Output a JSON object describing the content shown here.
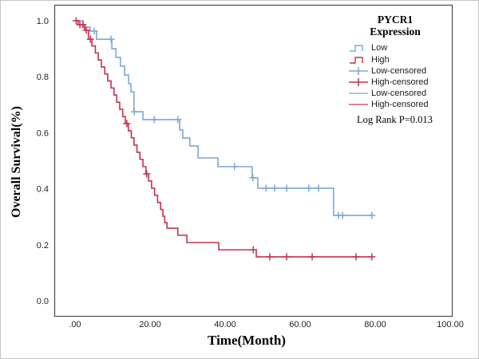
{
  "figure": {
    "background": "#ffffff",
    "plot_border_color": "#4a4a4a"
  },
  "chart_data": {
    "type": "line",
    "subtype": "kaplan-meier-step",
    "title": "",
    "xlabel": "Time(Month)",
    "ylabel": "Overall Survival(%)",
    "grid": false,
    "legend_position": "top-right",
    "xlim": [
      -5.5,
      100.4
    ],
    "ylim": [
      -0.054,
      1.057
    ],
    "xticks": {
      "values": [
        0,
        20,
        40,
        60,
        80,
        100
      ],
      "labels": [
        ".00",
        "20.00",
        "40.00",
        "60.00",
        "80.00",
        "100.00"
      ]
    },
    "yticks": {
      "values": [
        0,
        0.2,
        0.4,
        0.6,
        0.8,
        1.0
      ],
      "labels": [
        "0.0",
        "0.2",
        "0.4",
        "0.6",
        "0.8",
        "1.0"
      ]
    },
    "series": [
      {
        "name": "Low",
        "color": "#7fa6d9",
        "steps": [
          [
            0,
            1.0
          ],
          [
            2.1,
            0.977
          ],
          [
            4.0,
            0.963
          ],
          [
            5.7,
            0.934
          ],
          [
            9.8,
            0.9
          ],
          [
            10.9,
            0.869
          ],
          [
            12.1,
            0.838
          ],
          [
            13.2,
            0.806
          ],
          [
            14.3,
            0.775
          ],
          [
            14.9,
            0.746
          ],
          [
            15.7,
            0.675
          ],
          [
            18.1,
            0.647
          ],
          [
            27.9,
            0.61
          ],
          [
            28.7,
            0.581
          ],
          [
            30.6,
            0.553
          ],
          [
            32.8,
            0.51
          ],
          [
            38.1,
            0.479
          ],
          [
            47.2,
            0.439
          ],
          [
            48.7,
            0.402
          ],
          [
            68.9,
            0.305
          ],
          [
            79.1,
            0.305
          ]
        ],
        "censors": [
          [
            5.1,
            0.963
          ],
          [
            9.6,
            0.934
          ],
          [
            15.8,
            0.675
          ],
          [
            21.1,
            0.647
          ],
          [
            27.4,
            0.647
          ],
          [
            42.5,
            0.479
          ],
          [
            47.4,
            0.439
          ],
          [
            50.9,
            0.402
          ],
          [
            53.2,
            0.402
          ],
          [
            56.4,
            0.402
          ],
          [
            62.3,
            0.402
          ],
          [
            64.9,
            0.402
          ],
          [
            70.2,
            0.305
          ],
          [
            71.3,
            0.305
          ],
          [
            79.1,
            0.305
          ]
        ]
      },
      {
        "name": "High",
        "color": "#c2334f",
        "steps": [
          [
            0,
            1.0
          ],
          [
            0.8,
            0.986
          ],
          [
            2.6,
            0.966
          ],
          [
            3.6,
            0.934
          ],
          [
            4.5,
            0.91
          ],
          [
            5.4,
            0.885
          ],
          [
            6.2,
            0.86
          ],
          [
            7.0,
            0.835
          ],
          [
            7.9,
            0.81
          ],
          [
            8.7,
            0.785
          ],
          [
            9.6,
            0.76
          ],
          [
            10.4,
            0.735
          ],
          [
            11.1,
            0.709
          ],
          [
            11.9,
            0.684
          ],
          [
            12.7,
            0.658
          ],
          [
            13.4,
            0.633
          ],
          [
            14.2,
            0.607
          ],
          [
            15.0,
            0.582
          ],
          [
            15.7,
            0.556
          ],
          [
            16.5,
            0.53
          ],
          [
            17.3,
            0.505
          ],
          [
            18.1,
            0.479
          ],
          [
            18.9,
            0.453
          ],
          [
            19.6,
            0.428
          ],
          [
            20.4,
            0.402
          ],
          [
            21.2,
            0.377
          ],
          [
            22.0,
            0.351
          ],
          [
            22.8,
            0.326
          ],
          [
            23.4,
            0.302
          ],
          [
            23.9,
            0.279
          ],
          [
            24.5,
            0.259
          ],
          [
            27.4,
            0.234
          ],
          [
            29.8,
            0.208
          ],
          [
            38.3,
            0.182
          ],
          [
            48.3,
            0.157
          ],
          [
            79.1,
            0.157
          ]
        ],
        "censors": [
          [
            0.3,
            1.0
          ],
          [
            1.3,
            0.986
          ],
          [
            2.1,
            0.986
          ],
          [
            3.0,
            0.966
          ],
          [
            4.1,
            0.934
          ],
          [
            13.8,
            0.633
          ],
          [
            19.1,
            0.453
          ],
          [
            47.5,
            0.182
          ],
          [
            51.9,
            0.157
          ],
          [
            56.4,
            0.157
          ],
          [
            63.2,
            0.157
          ],
          [
            74.9,
            0.157
          ],
          [
            79.1,
            0.157
          ]
        ]
      }
    ]
  },
  "legend": {
    "title_lines": [
      "PYCR1",
      "Expression"
    ],
    "entries": [
      {
        "label": "Low",
        "glyph": "step",
        "color": "#7fa6d9"
      },
      {
        "label": "High",
        "glyph": "step",
        "color": "#c2334f"
      },
      {
        "label": "Low-censored",
        "glyph": "plus",
        "color": "#7fa6d9"
      },
      {
        "label": "High-censored",
        "glyph": "plus",
        "color": "#c2334f"
      },
      {
        "label": "Low-censored",
        "glyph": "line",
        "color": "#8fb0dd"
      },
      {
        "label": "High-censored",
        "glyph": "line",
        "color": "#cb5c72"
      }
    ],
    "note": "Log Rank P=0.013"
  }
}
